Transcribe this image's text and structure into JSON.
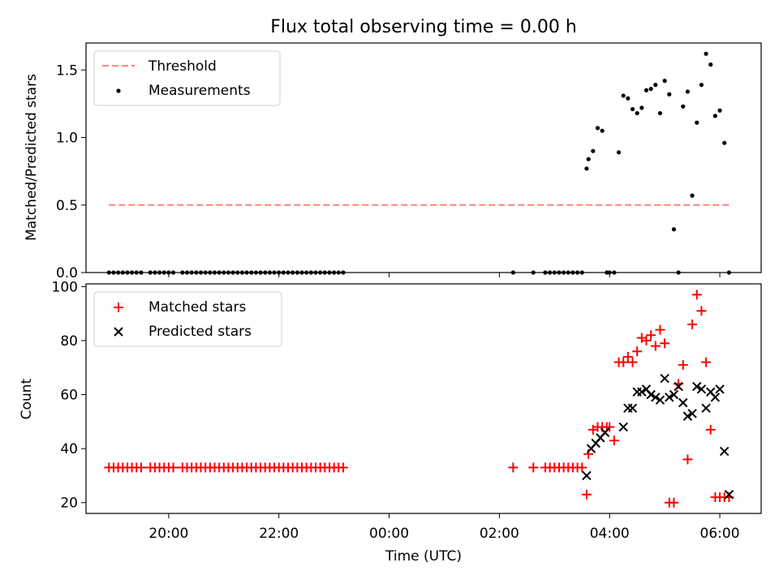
{
  "title": "Flux total observing time = 0.00 h",
  "xlabel": "Time (UTC)",
  "xticks": [
    "20:00",
    "22:00",
    "00:00",
    "02:00",
    "04:00",
    "06:00"
  ],
  "colors": {
    "threshold": "#ff8080",
    "measurements": "#000000",
    "matched": "#ff0000",
    "predicted": "#000000"
  },
  "chart_data": [
    {
      "type": "scatter",
      "ylabel": "Matched/Predicted stars",
      "ylim": [
        0,
        1.7
      ],
      "yticks": [
        "0.0",
        "0.5",
        "1.0",
        "1.5"
      ],
      "legend": {
        "position": "top-left",
        "entries": [
          "Threshold",
          "Measurements"
        ]
      },
      "threshold": {
        "name": "Threshold",
        "value": 0.5,
        "x_range": [
          "18:55",
          "06:10"
        ]
      },
      "series": [
        {
          "name": "Measurements",
          "marker": "dot",
          "x": [
            "18:55",
            "19:00",
            "19:05",
            "19:10",
            "19:15",
            "19:20",
            "19:25",
            "19:30",
            "19:40",
            "19:45",
            "19:50",
            "19:55",
            "20:00",
            "20:05",
            "20:15",
            "20:20",
            "20:25",
            "20:30",
            "20:35",
            "20:40",
            "20:45",
            "20:50",
            "20:55",
            "21:00",
            "21:05",
            "21:10",
            "21:15",
            "21:20",
            "21:25",
            "21:30",
            "21:35",
            "21:40",
            "21:45",
            "21:50",
            "21:55",
            "22:00",
            "22:05",
            "22:10",
            "22:15",
            "22:20",
            "22:25",
            "22:30",
            "22:35",
            "22:40",
            "22:45",
            "22:50",
            "22:55",
            "23:00",
            "23:05",
            "23:10",
            "02:15",
            "02:37",
            "02:50",
            "02:55",
            "03:00",
            "03:05",
            "03:10",
            "03:15",
            "03:20",
            "03:25",
            "03:30",
            "03:35",
            "03:37",
            "03:42",
            "03:47",
            "03:52",
            "03:57",
            "04:00",
            "04:05",
            "04:10",
            "04:15",
            "04:20",
            "04:25",
            "04:30",
            "04:35",
            "04:40",
            "04:45",
            "04:50",
            "04:55",
            "05:00",
            "05:05",
            "05:10",
            "05:15",
            "05:20",
            "05:25",
            "05:30",
            "05:35",
            "05:40",
            "05:45",
            "05:50",
            "05:55",
            "06:00",
            "06:05",
            "06:10"
          ],
          "y": [
            0,
            0,
            0,
            0,
            0,
            0,
            0,
            0,
            0,
            0,
            0,
            0,
            0,
            0,
            0,
            0,
            0,
            0,
            0,
            0,
            0,
            0,
            0,
            0,
            0,
            0,
            0,
            0,
            0,
            0,
            0,
            0,
            0,
            0,
            0,
            0,
            0,
            0,
            0,
            0,
            0,
            0,
            0,
            0,
            0,
            0,
            0,
            0,
            0,
            0,
            0,
            0,
            0,
            0,
            0,
            0,
            0,
            0,
            0,
            0,
            0,
            0.77,
            0.84,
            0.9,
            1.07,
            1.05,
            0,
            0,
            0,
            0.89,
            1.31,
            1.29,
            1.21,
            1.18,
            1.22,
            1.35,
            1.36,
            1.39,
            1.18,
            1.42,
            1.32,
            0.32,
            0,
            1.23,
            1.34,
            0.57,
            1.11,
            1.39,
            1.62,
            1.54,
            1.16,
            1.2,
            0.96,
            0
          ]
        }
      ]
    },
    {
      "type": "scatter",
      "ylabel": "Count",
      "ylim": [
        16,
        101
      ],
      "yticks": [
        "20",
        "40",
        "60",
        "80",
        "100"
      ],
      "legend": {
        "position": "top-left",
        "entries": [
          "Matched stars",
          "Predicted stars"
        ]
      },
      "series": [
        {
          "name": "Matched stars",
          "marker": "plus",
          "x": [
            "18:55",
            "19:00",
            "19:05",
            "19:10",
            "19:15",
            "19:20",
            "19:25",
            "19:30",
            "19:40",
            "19:45",
            "19:50",
            "19:55",
            "20:00",
            "20:05",
            "20:15",
            "20:20",
            "20:25",
            "20:30",
            "20:35",
            "20:40",
            "20:45",
            "20:50",
            "20:55",
            "21:00",
            "21:05",
            "21:10",
            "21:15",
            "21:20",
            "21:25",
            "21:30",
            "21:35",
            "21:40",
            "21:45",
            "21:50",
            "21:55",
            "22:00",
            "22:05",
            "22:10",
            "22:15",
            "22:20",
            "22:25",
            "22:30",
            "22:35",
            "22:40",
            "22:45",
            "22:50",
            "22:55",
            "23:00",
            "23:05",
            "23:10",
            "02:15",
            "02:37",
            "02:50",
            "02:55",
            "03:00",
            "03:05",
            "03:10",
            "03:15",
            "03:20",
            "03:25",
            "03:30",
            "03:35",
            "03:37",
            "03:42",
            "03:47",
            "03:52",
            "03:57",
            "04:00",
            "04:05",
            "04:10",
            "04:15",
            "04:20",
            "04:25",
            "04:30",
            "04:35",
            "04:40",
            "04:45",
            "04:50",
            "04:55",
            "05:00",
            "05:05",
            "05:10",
            "05:15",
            "05:20",
            "05:25",
            "05:30",
            "05:35",
            "05:40",
            "05:45",
            "05:50",
            "05:55",
            "06:00",
            "06:05",
            "06:10"
          ],
          "y": [
            33,
            33,
            33,
            33,
            33,
            33,
            33,
            33,
            33,
            33,
            33,
            33,
            33,
            33,
            33,
            33,
            33,
            33,
            33,
            33,
            33,
            33,
            33,
            33,
            33,
            33,
            33,
            33,
            33,
            33,
            33,
            33,
            33,
            33,
            33,
            33,
            33,
            33,
            33,
            33,
            33,
            33,
            33,
            33,
            33,
            33,
            33,
            33,
            33,
            33,
            33,
            33,
            33,
            33,
            33,
            33,
            33,
            33,
            33,
            33,
            33,
            23,
            38,
            47,
            48,
            48,
            48,
            48,
            43,
            72,
            72,
            74,
            72,
            76,
            81,
            80,
            82,
            78,
            84,
            79,
            20,
            20,
            64,
            71,
            36,
            86,
            97,
            91,
            72,
            47,
            22,
            22,
            22,
            22
          ]
        },
        {
          "name": "Predicted stars",
          "marker": "x",
          "x": [
            "03:35",
            "03:40",
            "03:45",
            "03:50",
            "03:55",
            "04:15",
            "04:20",
            "04:25",
            "04:30",
            "04:35",
            "04:40",
            "04:45",
            "04:50",
            "04:55",
            "05:00",
            "05:05",
            "05:10",
            "05:15",
            "05:20",
            "05:25",
            "05:30",
            "05:35",
            "05:40",
            "05:45",
            "05:50",
            "05:55",
            "06:00",
            "06:05",
            "06:10"
          ],
          "y": [
            30,
            40,
            42,
            44,
            46,
            48,
            55,
            55,
            61,
            61,
            62,
            60,
            59,
            58,
            66,
            59,
            60,
            63,
            57,
            52,
            53,
            63,
            62,
            55,
            61,
            59,
            62,
            39,
            23
          ]
        }
      ]
    }
  ]
}
